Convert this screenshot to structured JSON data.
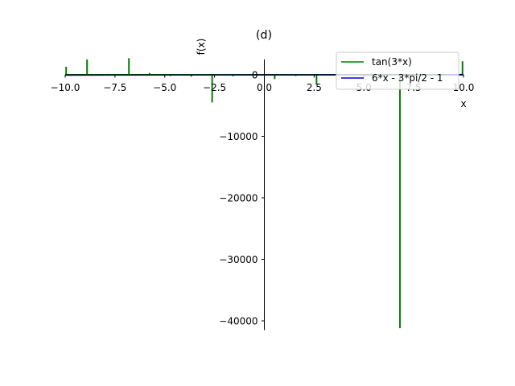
{
  "chart_data": {
    "type": "line",
    "title": "(d)",
    "xlabel": "x",
    "ylabel": "f(x)",
    "xlim": [
      -10,
      10
    ],
    "ylim": [
      -41500,
      2500
    ],
    "x_ticks": [
      -10,
      -7.5,
      -5,
      -2.5,
      0,
      2.5,
      5,
      7.5,
      10
    ],
    "x_tick_labels": [
      "−10.0",
      "−7.5",
      "−5.0",
      "−2.5",
      "0.0",
      "2.5",
      "5.0",
      "7.5",
      "10.0"
    ],
    "y_ticks": [
      0,
      -10000,
      -20000,
      -30000,
      -40000
    ],
    "y_tick_labels": [
      "0",
      "−10000",
      "−20000",
      "−30000",
      "−40000"
    ],
    "legend_position": "top-right",
    "series": [
      {
        "name": "tan(3*x)",
        "color": "#008000",
        "spikes": [
          {
            "x": -9.95,
            "y": 1300
          },
          {
            "x": -8.9,
            "y": 2500
          },
          {
            "x": -7.85,
            "y": 150
          },
          {
            "x": -6.8,
            "y": 2700
          },
          {
            "x": -5.76,
            "y": 300
          },
          {
            "x": -4.71,
            "y": -200
          },
          {
            "x": -3.67,
            "y": -300
          },
          {
            "x": -2.62,
            "y": -4500
          },
          {
            "x": -1.57,
            "y": -250
          },
          {
            "x": 0.52,
            "y": -700
          },
          {
            "x": 1.57,
            "y": -200
          },
          {
            "x": 2.62,
            "y": -1600
          },
          {
            "x": 6.81,
            "y": -41200
          },
          {
            "x": 9.95,
            "y": 2200
          }
        ]
      },
      {
        "name": "6*x - 3*pi/2 - 1",
        "color": "#0000cc",
        "x": [
          -10,
          10
        ],
        "y": [
          -65.7,
          54.3
        ]
      }
    ]
  }
}
